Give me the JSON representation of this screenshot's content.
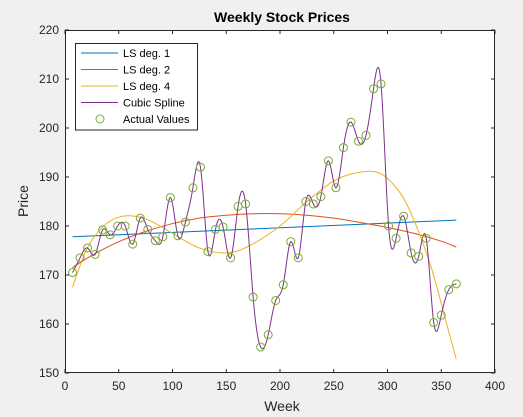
{
  "chart_data": {
    "type": "line",
    "title": "Weekly Stock Prices",
    "xlabel": "Week",
    "ylabel": "Price",
    "xlim": [
      0,
      400
    ],
    "ylim": [
      150,
      220
    ],
    "xticks": [
      0,
      50,
      100,
      150,
      200,
      250,
      300,
      350,
      400
    ],
    "yticks": [
      150,
      160,
      170,
      180,
      190,
      200,
      210,
      220
    ],
    "grid": false,
    "legend_location": "top-left",
    "series": [
      {
        "name": "LS deg. 1",
        "color": "#0072BD",
        "style": "line",
        "x": [
          7,
          364
        ],
        "y": [
          177.8,
          181.2
        ]
      },
      {
        "name": "LS deg. 2",
        "color": "#D95319",
        "style": "line",
        "x": [
          7,
          25,
          50,
          75,
          100,
          125,
          150,
          175,
          200,
          225,
          250,
          275,
          300,
          325,
          350,
          364
        ],
        "y": [
          171.5,
          174.0,
          176.8,
          178.9,
          180.5,
          181.6,
          182.2,
          182.5,
          182.5,
          182.2,
          181.6,
          180.7,
          179.7,
          178.5,
          176.9,
          175.7
        ]
      },
      {
        "name": "LS deg. 4",
        "color": "#EDB120",
        "style": "line",
        "x": [
          7,
          20,
          35,
          50,
          65,
          80,
          100,
          125,
          150,
          170,
          200,
          225,
          250,
          270,
          290,
          305,
          320,
          340,
          355,
          364
        ],
        "y": [
          167.5,
          175.2,
          179.8,
          181.8,
          182.0,
          181.0,
          178.5,
          175.5,
          174.5,
          175.8,
          180.0,
          185.0,
          189.2,
          190.8,
          191.0,
          188.6,
          183.5,
          172.0,
          160.0,
          152.8
        ]
      },
      {
        "name": "Cubic Spline",
        "color": "#7E2F8E",
        "style": "spline",
        "x": [
          7,
          14,
          21,
          28,
          35,
          42,
          49,
          56,
          63,
          70,
          77,
          84,
          91,
          98,
          105,
          112,
          119,
          126,
          133,
          140,
          147,
          154,
          161,
          168,
          175,
          182,
          189,
          196,
          203,
          210,
          217,
          224,
          231,
          238,
          245,
          252,
          259,
          266,
          273,
          280,
          287,
          294,
          301,
          308,
          315,
          322,
          329,
          336,
          343,
          350,
          357,
          364
        ],
        "y": [
          170.5,
          173.5,
          175.5,
          174.2,
          179.2,
          178.2,
          180.0,
          180.0,
          176.3,
          181.6,
          179.3,
          177.0,
          177.8,
          185.8,
          178.0,
          180.8,
          187.8,
          192.0,
          174.8,
          179.3,
          179.8,
          173.5,
          184.0,
          184.5,
          165.5,
          155.3,
          157.8,
          164.8,
          168.0,
          176.8,
          173.5,
          185.0,
          184.5,
          186.0,
          193.3,
          187.8,
          196.0,
          201.2,
          197.3,
          198.5,
          208.0,
          209.0,
          180.0,
          177.5,
          182.0,
          174.5,
          173.8,
          177.5,
          160.3,
          161.8,
          167.0,
          168.2
        ]
      },
      {
        "name": "Actual Values",
        "color": "#77AC30",
        "style": "markers",
        "x": [
          7,
          14,
          21,
          28,
          35,
          42,
          49,
          56,
          63,
          70,
          77,
          84,
          91,
          98,
          105,
          112,
          119,
          126,
          133,
          140,
          147,
          154,
          161,
          168,
          175,
          182,
          189,
          196,
          203,
          210,
          217,
          224,
          231,
          238,
          245,
          252,
          259,
          266,
          273,
          280,
          287,
          294,
          301,
          308,
          315,
          322,
          329,
          336,
          343,
          350,
          357,
          364
        ],
        "y": [
          170.5,
          173.5,
          175.5,
          174.2,
          179.2,
          178.2,
          180.0,
          180.0,
          176.3,
          181.6,
          179.3,
          177.0,
          177.8,
          185.8,
          178.0,
          180.8,
          187.8,
          192.0,
          174.8,
          179.3,
          179.8,
          173.5,
          184.0,
          184.5,
          165.5,
          155.3,
          157.8,
          164.8,
          168.0,
          176.8,
          173.5,
          185.0,
          184.5,
          186.0,
          193.3,
          187.8,
          196.0,
          201.2,
          197.3,
          198.5,
          208.0,
          209.0,
          180.0,
          177.5,
          182.0,
          174.5,
          173.8,
          177.5,
          160.3,
          161.8,
          167.0,
          168.2
        ]
      }
    ]
  }
}
